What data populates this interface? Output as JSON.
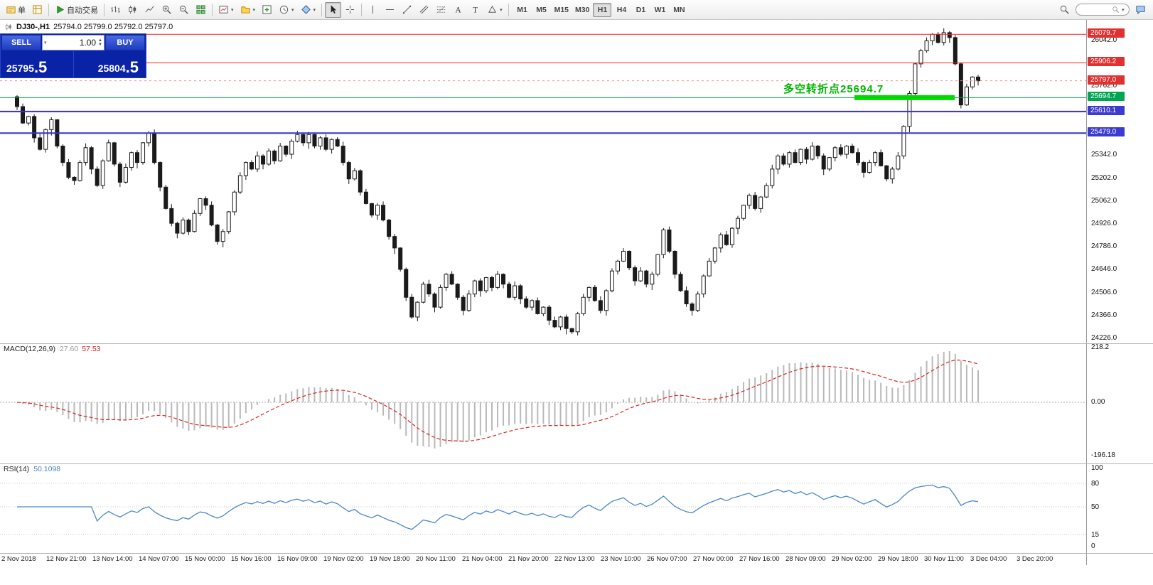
{
  "toolbar": {
    "items": [
      {
        "icon": "new-order-icon",
        "label": "单",
        "name": "new-order-button"
      },
      {
        "icon": "market-watch-icon",
        "name": "market-watch-button"
      },
      {
        "sep": true
      },
      {
        "icon": "autotrading-icon",
        "label": "自动交易",
        "name": "autotrading-button"
      },
      {
        "sep": true
      },
      {
        "icon": "bar-chart-icon",
        "name": "bar-chart-button"
      },
      {
        "icon": "candlestick-icon",
        "name": "candlestick-button"
      },
      {
        "icon": "line-chart-icon",
        "name": "line-chart-button"
      },
      {
        "icon": "zoom-in-icon",
        "name": "zoom-in-button"
      },
      {
        "icon": "zoom-out-icon",
        "name": "zoom-out-button"
      },
      {
        "icon": "tile-windows-icon",
        "name": "tile-windows-button"
      },
      {
        "sep": true
      },
      {
        "icon": "new-chart-icon",
        "caret": true,
        "name": "new-chart-button"
      },
      {
        "icon": "profiles-icon",
        "caret": true,
        "name": "profiles-button"
      },
      {
        "icon": "indicators-icon",
        "name": "indicators-button"
      },
      {
        "icon": "periods-icon",
        "caret": true,
        "name": "periods-button"
      },
      {
        "icon": "templates-icon",
        "caret": true,
        "name": "templates-button"
      },
      {
        "sep": true
      },
      {
        "icon": "cursor-icon",
        "name": "cursor-button",
        "active": true
      },
      {
        "icon": "crosshair-icon",
        "name": "crosshair-button"
      },
      {
        "sep": true
      },
      {
        "icon": "vertical-line-icon",
        "name": "vertical-line-button"
      },
      {
        "icon": "horizontal-line-icon",
        "name": "horizontal-line-button"
      },
      {
        "icon": "trendline-icon",
        "name": "trendline-button"
      },
      {
        "icon": "channel-icon",
        "name": "channel-button"
      },
      {
        "icon": "fibonacci-icon",
        "name": "fibonacci-button"
      },
      {
        "icon": "text-icon",
        "name": "text-button"
      },
      {
        "icon": "label-icon",
        "name": "label-button"
      },
      {
        "icon": "shapes-icon",
        "caret": true,
        "name": "shapes-button"
      },
      {
        "sep": true
      }
    ],
    "timeframes": [
      "M1",
      "M5",
      "M15",
      "M30",
      "H1",
      "H4",
      "D1",
      "W1",
      "MN"
    ],
    "active_timeframe": "H1",
    "search_placeholder": ""
  },
  "chart_header": {
    "symbol": "DJ30-,H1",
    "ohlc": "25794.0 25799.0 25792.0 25797.0"
  },
  "trade_panel": {
    "sell_label": "SELL",
    "buy_label": "BUY",
    "volume": "1.00",
    "sell_price_base": "25795",
    "sell_price_big": ".5",
    "buy_price_base": "25804",
    "buy_price_big": ".5"
  },
  "annotation": {
    "text": "多空转折点25694.7",
    "price": 25694.7,
    "color": "#00b400",
    "underline_color": "#00d800"
  },
  "price_scale": {
    "plain_labels": [
      {
        "price": 26042.0,
        "label": "26042.0"
      },
      {
        "price": 25762.0,
        "label": "25762.0"
      },
      {
        "price": 25342.0,
        "label": "25342.0"
      },
      {
        "price": 25202.0,
        "label": "25202.0"
      },
      {
        "price": 25062.0,
        "label": "25062.0"
      },
      {
        "price": 24926.0,
        "label": "24926.0"
      },
      {
        "price": 24786.0,
        "label": "24786.0"
      },
      {
        "price": 24646.0,
        "label": "24646.0"
      },
      {
        "price": 24506.0,
        "label": "24506.0"
      },
      {
        "price": 24366.0,
        "label": "24366.0"
      },
      {
        "price": 24226.0,
        "label": "24226.0"
      }
    ],
    "badges": [
      {
        "price": 26079.7,
        "label": "26079.7",
        "color": "#e03030",
        "line_color": "#ff2020",
        "line_width": 1
      },
      {
        "price": 25906.2,
        "label": "25906.2",
        "color": "#e03030",
        "line_color": "#ff2020",
        "line_width": 1
      },
      {
        "price": 25797.0,
        "label": "25797.0",
        "color": "#e03030",
        "line_color": "#f09090",
        "line_width": 1,
        "dashed": true
      },
      {
        "price": 25694.7,
        "label": "25694.7",
        "color": "#00a651",
        "line_color": "#00a651",
        "line_width": 1
      },
      {
        "price": 25610.1,
        "label": "25610.1",
        "color": "#3b3bd0",
        "line_color": "#3333cc",
        "line_width": 2
      },
      {
        "price": 25479.0,
        "label": "25479.0",
        "color": "#3b3bd0",
        "line_color": "#3333cc",
        "line_width": 2
      }
    ]
  },
  "indicators": {
    "macd": {
      "label": "MACD(12,26,9)",
      "value1": "27.60",
      "value2": "57.53",
      "scale": [
        "218.2",
        "0.00",
        "-196.18"
      ],
      "histogram_color": "#b9b9b9",
      "signal_color": "#e02020"
    },
    "rsi": {
      "label": "RSI(14)",
      "value": "50.1098",
      "scale": [
        "100",
        "80",
        "50",
        "15",
        "0"
      ],
      "levels": [
        80,
        50,
        15
      ],
      "line_color": "#4a86c8"
    }
  },
  "time_axis": {
    "labels": [
      "2 Nov 2018",
      "12 Nov 21:00",
      "13 Nov 14:00",
      "14 Nov 07:00",
      "15 Nov 00:00",
      "15 Nov 16:00",
      "16 Nov 09:00",
      "19 Nov 02:00",
      "19 Nov 18:00",
      "20 Nov 11:00",
      "21 Nov 04:00",
      "21 Nov 20:00",
      "22 Nov 13:00",
      "23 Nov 10:00",
      "26 Nov 07:00",
      "27 Nov 00:00",
      "27 Nov 16:00",
      "28 Nov 09:00",
      "29 Nov 02:00",
      "29 Nov 18:00",
      "30 Nov 11:00",
      "3 Dec 04:00",
      "3 Dec 20:00"
    ]
  },
  "chart_data": [
    {
      "type": "candlestick",
      "symbol": "DJ30-",
      "timeframe": "H1",
      "current_ohlc": {
        "open": 25794.0,
        "high": 25799.0,
        "low": 25792.0,
        "close": 25797.0
      },
      "y_axis": {
        "top": 26094,
        "bottom": 24222,
        "grid_step": 140
      },
      "open0": 25700,
      "closes": [
        25640,
        25540,
        25580,
        25450,
        25380,
        25500,
        25560,
        25400,
        25300,
        25210,
        25190,
        25300,
        25390,
        25260,
        25160,
        25310,
        25420,
        25290,
        25180,
        25270,
        25360,
        25300,
        25420,
        25480,
        25300,
        25150,
        25020,
        24930,
        24870,
        24950,
        24880,
        24990,
        25080,
        25040,
        24920,
        24820,
        24880,
        25000,
        25120,
        25220,
        25300,
        25260,
        25340,
        25290,
        25370,
        25310,
        25400,
        25350,
        25430,
        25470,
        25420,
        25470,
        25400,
        25450,
        25380,
        25440,
        25400,
        25300,
        25200,
        25250,
        25120,
        25050,
        24980,
        25040,
        24950,
        24850,
        24780,
        24650,
        24480,
        24360,
        24450,
        24560,
        24500,
        24420,
        24540,
        24620,
        24560,
        24480,
        24400,
        24500,
        24580,
        24520,
        24600,
        24540,
        24620,
        24560,
        24480,
        24550,
        24470,
        24420,
        24460,
        24380,
        24420,
        24340,
        24300,
        24360,
        24290,
        24270,
        24380,
        24480,
        24540,
        24460,
        24400,
        24520,
        24640,
        24700,
        24760,
        24660,
        24580,
        24640,
        24560,
        24620,
        24740,
        24890,
        24760,
        24620,
        24520,
        24440,
        24400,
        24500,
        24610,
        24700,
        24780,
        24860,
        24800,
        24900,
        24960,
        25040,
        25100,
        25020,
        25090,
        25160,
        25260,
        25340,
        25290,
        25360,
        25300,
        25380,
        25320,
        25400,
        25340,
        25260,
        25330,
        25390,
        25350,
        25400,
        25360,
        25300,
        25240,
        25300,
        25360,
        25280,
        25200,
        25260,
        25340,
        25520,
        25720,
        25900,
        25980,
        26040,
        26080,
        26030,
        26090,
        26060,
        25900,
        25650,
        25760,
        25820,
        25797
      ],
      "wick_pattern": [
        16,
        34,
        9,
        24,
        42,
        13,
        28,
        7,
        20,
        38,
        11,
        26,
        48,
        18,
        30
      ],
      "colors": {
        "up_fill": "#ffffff",
        "down_fill": "#1a1a1a",
        "stroke": "#1a1a1a"
      }
    },
    {
      "type": "bar",
      "name": "MACD",
      "params": [
        12,
        26,
        9
      ],
      "current_values": [
        27.6,
        57.53
      ],
      "ylim": [
        -196.18,
        218.2
      ]
    },
    {
      "type": "line",
      "name": "RSI",
      "params": [
        14
      ],
      "current_value": 50.1098,
      "ylim": [
        0,
        100
      ],
      "levels": [
        80,
        50,
        15
      ]
    }
  ]
}
